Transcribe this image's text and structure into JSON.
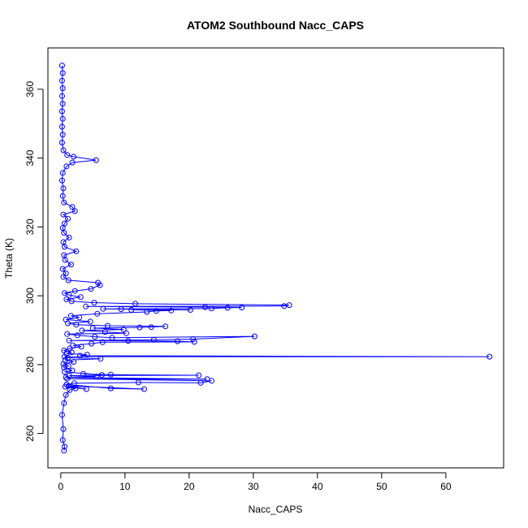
{
  "chart_data": {
    "type": "line",
    "title": "ATOM2 Southbound Nacc_CAPS",
    "xlabel": "Nacc_CAPS",
    "ylabel": "Theta (K)",
    "xlim": [
      -2,
      69
    ],
    "ylim": [
      250,
      372
    ],
    "xticks": [
      0,
      10,
      20,
      30,
      40,
      50,
      60
    ],
    "yticks": [
      260,
      280,
      300,
      320,
      340,
      360
    ],
    "grid": false,
    "legend": "none",
    "markers": "open-circle",
    "color": "#0000ff",
    "series": [
      {
        "points": [
          [
            0.5,
            255
          ],
          [
            0.6,
            256.2
          ],
          [
            0.3,
            258.1
          ],
          [
            0.4,
            261.3
          ],
          [
            0.2,
            265.4
          ],
          [
            0.5,
            268.8
          ],
          [
            0.8,
            271.2
          ],
          [
            1.4,
            272.6
          ],
          [
            2.3,
            273.1
          ],
          [
            0.7,
            273.6
          ],
          [
            4.0,
            272.9
          ],
          [
            1.2,
            273.8
          ],
          [
            13.0,
            272.9
          ],
          [
            7.8,
            273.1
          ],
          [
            0.9,
            274.2
          ],
          [
            2.1,
            274.6
          ],
          [
            12.1,
            274.8
          ],
          [
            21.8,
            274.7
          ],
          [
            23.5,
            275.3
          ],
          [
            1.0,
            275.9
          ],
          [
            22.8,
            275.8
          ],
          [
            0.8,
            276.3
          ],
          [
            5.5,
            276.5
          ],
          [
            1.3,
            276.8
          ],
          [
            21.5,
            276.9
          ],
          [
            7.8,
            277.1
          ],
          [
            3.5,
            277.3
          ],
          [
            6.4,
            277.0
          ],
          [
            0.6,
            277.9
          ],
          [
            1.8,
            278.3
          ],
          [
            0.5,
            279.1
          ],
          [
            1.2,
            279.6
          ],
          [
            0.4,
            280.2
          ],
          [
            2.0,
            280.8
          ],
          [
            0.7,
            281.3
          ],
          [
            6.2,
            281.7
          ],
          [
            1.1,
            282.0
          ],
          [
            0.6,
            282.3
          ],
          [
            66.8,
            282.3
          ],
          [
            3.0,
            282.6
          ],
          [
            4.1,
            282.9
          ],
          [
            0.9,
            283.2
          ],
          [
            1.7,
            283.6
          ],
          [
            0.5,
            284.1
          ],
          [
            1.4,
            284.7
          ],
          [
            3.2,
            285.2
          ],
          [
            1.9,
            285.6
          ],
          [
            4.8,
            286.1
          ],
          [
            6.5,
            286.5
          ],
          [
            20.8,
            286.6
          ],
          [
            18.2,
            286.8
          ],
          [
            10.5,
            286.9
          ],
          [
            1.3,
            287.0
          ],
          [
            14.5,
            287.2
          ],
          [
            20.6,
            287.4
          ],
          [
            30.2,
            288.2
          ],
          [
            8.0,
            287.8
          ],
          [
            5.3,
            288.1
          ],
          [
            2.6,
            288.5
          ],
          [
            1.0,
            288.9
          ],
          [
            10.2,
            289.1
          ],
          [
            6.9,
            289.5
          ],
          [
            3.3,
            289.9
          ],
          [
            9.8,
            290.2
          ],
          [
            5.0,
            290.6
          ],
          [
            12.3,
            290.8
          ],
          [
            14.1,
            290.9
          ],
          [
            16.3,
            291.1
          ],
          [
            7.3,
            291.3
          ],
          [
            2.4,
            291.6
          ],
          [
            1.1,
            292.0
          ],
          [
            4.6,
            292.5
          ],
          [
            0.8,
            293.1
          ],
          [
            2.9,
            293.7
          ],
          [
            1.6,
            294.2
          ],
          [
            5.7,
            294.8
          ],
          [
            13.4,
            295.3
          ],
          [
            14.9,
            295.6
          ],
          [
            17.2,
            295.7
          ],
          [
            11.0,
            295.9
          ],
          [
            20.2,
            295.9
          ],
          [
            9.4,
            296.1
          ],
          [
            6.6,
            296.2
          ],
          [
            23.5,
            296.3
          ],
          [
            26.0,
            296.5
          ],
          [
            28.2,
            296.6
          ],
          [
            22.5,
            296.7
          ],
          [
            3.9,
            296.9
          ],
          [
            34.8,
            297.0
          ],
          [
            35.6,
            297.3
          ],
          [
            11.6,
            297.7
          ],
          [
            5.2,
            298.0
          ],
          [
            1.7,
            298.4
          ],
          [
            0.9,
            299.0
          ],
          [
            3.1,
            299.6
          ],
          [
            1.3,
            300.2
          ],
          [
            0.6,
            300.8
          ],
          [
            2.2,
            301.4
          ],
          [
            4.7,
            302.0
          ],
          [
            6.1,
            303.1
          ],
          [
            5.8,
            303.8
          ],
          [
            1.2,
            304.5
          ],
          [
            0.4,
            305.5
          ],
          [
            0.8,
            306.5
          ],
          [
            0.3,
            307.8
          ],
          [
            1.6,
            309.1
          ],
          [
            0.7,
            310.4
          ],
          [
            0.5,
            311.8
          ],
          [
            2.4,
            312.9
          ],
          [
            0.6,
            314.2
          ],
          [
            0.4,
            315.6
          ],
          [
            1.3,
            316.9
          ],
          [
            0.5,
            318.3
          ],
          [
            0.3,
            319.7
          ],
          [
            0.6,
            321.0
          ],
          [
            1.1,
            322.4
          ],
          [
            0.4,
            323.6
          ],
          [
            2.2,
            324.6
          ],
          [
            1.8,
            325.8
          ],
          [
            0.5,
            327.1
          ],
          [
            0.3,
            329.0
          ],
          [
            0.4,
            331.2
          ],
          [
            0.2,
            333.5
          ],
          [
            0.3,
            335.7
          ],
          [
            0.9,
            337.6
          ],
          [
            1.8,
            338.7
          ],
          [
            5.5,
            339.4
          ],
          [
            2.0,
            340.4
          ],
          [
            1.0,
            340.9
          ],
          [
            0.4,
            342.3
          ],
          [
            0.2,
            344.5
          ],
          [
            0.3,
            346.8
          ],
          [
            0.2,
            349.1
          ],
          [
            0.3,
            351.4
          ],
          [
            0.2,
            353.6
          ],
          [
            0.3,
            355.8
          ],
          [
            0.2,
            358.0
          ],
          [
            0.3,
            360.3
          ],
          [
            0.2,
            362.5
          ],
          [
            0.3,
            364.7
          ],
          [
            0.2,
            366.9
          ]
        ]
      }
    ]
  }
}
